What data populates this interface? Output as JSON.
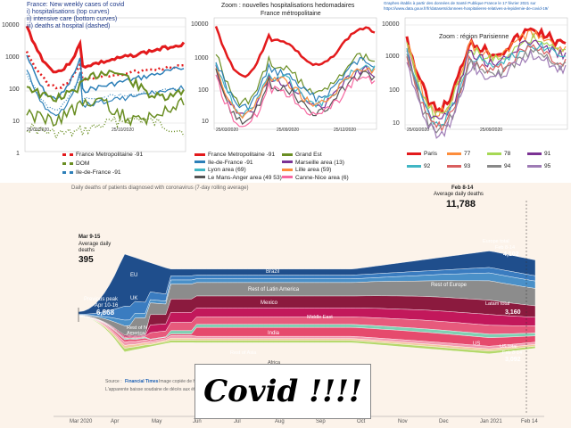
{
  "panel1": {
    "title_lines": [
      "France: New weekly cases of covid",
      "i) hospitalisations (top curves)",
      "ii) intensive care (bottom curves)",
      "iii) deaths at hospital (dashed)"
    ],
    "yticks": [
      "10000",
      "1000",
      "100",
      "10",
      "1"
    ],
    "xticks": [
      "25/03/2020",
      "25/10/2020"
    ],
    "legend": [
      {
        "label": "France Metropolitaine -91",
        "color": "#e31a1c",
        "style": "dotted"
      },
      {
        "label": "DOM",
        "color": "#6a8e23",
        "style": "dotted"
      },
      {
        "label": "Ile-de-France -91",
        "color": "#2c7fb8",
        "style": "dotted"
      }
    ]
  },
  "panel2": {
    "title_lines": [
      "Zoom : nouvelles hospitalisations hedomadaires",
      "France métropolitaine"
    ],
    "yticks": [
      "10000",
      "1000",
      "100",
      "10"
    ],
    "xticks": [
      "25/03/2020",
      "25/09/2020",
      "25/12/2020"
    ],
    "legend": [
      {
        "label": "France Metropolitaine -91",
        "color": "#e31a1c"
      },
      {
        "label": "Grand Est",
        "color": "#6a8e23"
      },
      {
        "label": "Ile-de-France -91",
        "color": "#2c7fb8"
      },
      {
        "label": "Marseille area (13)",
        "color": "#7b3294"
      },
      {
        "label": "Lyon area (69)",
        "color": "#41b6c4"
      },
      {
        "label": "Lille area (59)",
        "color": "#fd8d3c"
      },
      {
        "label": "Le Mans-Anger area (49 53)",
        "color": "#555555"
      },
      {
        "label": "Canne-Nice area (6)",
        "color": "#f768a1"
      }
    ]
  },
  "panel3": {
    "header_lines": [
      "Graphes établis à partir des données de Santé Publique France le 17 février 2021 sur",
      "https://www.data.gouv.fr/fr/datasets/donnees-hospitalieres-relatives-a-lepidemie-de-covid-19/"
    ],
    "title": "Zoom : région Parisienne",
    "yticks": [
      "10000",
      "1000",
      "100",
      "10"
    ],
    "xticks": [
      "25/03/2020",
      "25/09/2020"
    ],
    "legend": [
      {
        "label": "Paris",
        "color": "#e31a1c"
      },
      {
        "label": "77",
        "color": "#fd8d3c"
      },
      {
        "label": "78",
        "color": "#a6d854"
      },
      {
        "label": "91",
        "color": "#7b3294"
      },
      {
        "label": "92",
        "color": "#41b6c4"
      },
      {
        "label": "93",
        "color": "#d95f5f"
      },
      {
        "label": "94",
        "color": "#888888"
      },
      {
        "label": "95",
        "color": "#9e7bb5"
      }
    ]
  },
  "panel4": {
    "title": "Daily deaths of patients diagnosed with coronavirus (7-day rolling average)",
    "left_note": {
      "date": "Mar 9-15",
      "label": "Average daily deaths",
      "value": "395"
    },
    "prev_peak": {
      "label": "Previous peak",
      "date": "Apr 10-16",
      "value": "6,868"
    },
    "right_note": {
      "date": "Feb 8-14",
      "label": "Average daily deaths",
      "value": "11,788"
    },
    "europe_total": {
      "label": "Europe total",
      "date": "Feb 8-14",
      "value": "4,102"
    },
    "latam_total": {
      "label": "Latam total",
      "value": "3,160"
    },
    "us_total": {
      "label": "US total",
      "date": "Feb 8-14",
      "value": "3,092"
    },
    "region_labels": [
      "EU",
      "UK",
      "Brazil",
      "Rest of Latin America",
      "Mexico",
      "Middle East",
      "India",
      "Rest of N America",
      "Rest of Asia",
      "Africa",
      "Rest of Europe",
      "US"
    ],
    "xticks": [
      "Mar 2020",
      "Apr",
      "May",
      "Jun",
      "Jul",
      "Aug",
      "Sep",
      "Oct",
      "Nov",
      "Dec",
      "Jan 2021",
      "Feb 14"
    ],
    "source_label": "Source :",
    "source": "Financial Times",
    "source_note": "Image copiée de H...",
    "caption": "L'apparente baisse soudaine de décès aux ét..."
  },
  "overlay_text": "Covid !!!!",
  "chart_data": [
    {
      "type": "line",
      "title": "France: New weekly cases of covid",
      "y_scale": "log",
      "ylim": [
        1,
        10000
      ],
      "x": [
        "25/03/2020",
        "25/10/2020"
      ],
      "series": [
        {
          "name": "France Metropolitaine -91",
          "peak": 9000,
          "trough": 700,
          "end": 10000
        },
        {
          "name": "DOM",
          "peak": 150,
          "trough": 20,
          "end": 60
        },
        {
          "name": "Ile-de-France -91",
          "peak": 5000,
          "trough": 100,
          "end": 1500
        }
      ]
    },
    {
      "type": "line",
      "title": "Zoom : nouvelles hospitalisations hedomadaires France métropolitaine",
      "y_scale": "log",
      "ylim": [
        10,
        10000
      ],
      "x": [
        "25/03/2020",
        "25/09/2020",
        "25/12/2020"
      ],
      "series": [
        {
          "name": "France Metropolitaine -91",
          "peak": 10000,
          "trough": 500,
          "end": 10000
        },
        {
          "name": "Grand Est",
          "peak": 3000,
          "trough": 40,
          "end": 1500
        },
        {
          "name": "Ile-de-France -91",
          "peak": 5000,
          "trough": 60,
          "end": 1500
        }
      ]
    },
    {
      "type": "line",
      "title": "Zoom : région Parisienne",
      "y_scale": "log",
      "ylim": [
        10,
        10000
      ],
      "x": [
        "25/03/2020",
        "25/09/2020"
      ],
      "series": [
        {
          "name": "Paris",
          "peak": 2000,
          "trough": 20,
          "end": 1000
        }
      ]
    },
    {
      "type": "area",
      "title": "Daily deaths of patients diagnosed with coronavirus (7-day rolling average)",
      "x": [
        "Mar 2020",
        "Apr",
        "May",
        "Jun",
        "Jul",
        "Aug",
        "Sep",
        "Oct",
        "Nov",
        "Dec",
        "Jan 2021",
        "Feb 14"
      ],
      "series_order": [
        "US",
        "Rest of Europe",
        "UK",
        "EU",
        "Brazil",
        "Rest of Latin America",
        "Mexico",
        "Middle East",
        "India",
        "Rest of Asia",
        "Africa",
        "Rest of N America"
      ],
      "annotations": {
        "Mar 9-15": 395,
        "Apr 10-16": 6868,
        "Feb 8-14": 11788,
        "Europe total": 4102,
        "Latam total": 3160,
        "US total": 3092
      }
    }
  ]
}
